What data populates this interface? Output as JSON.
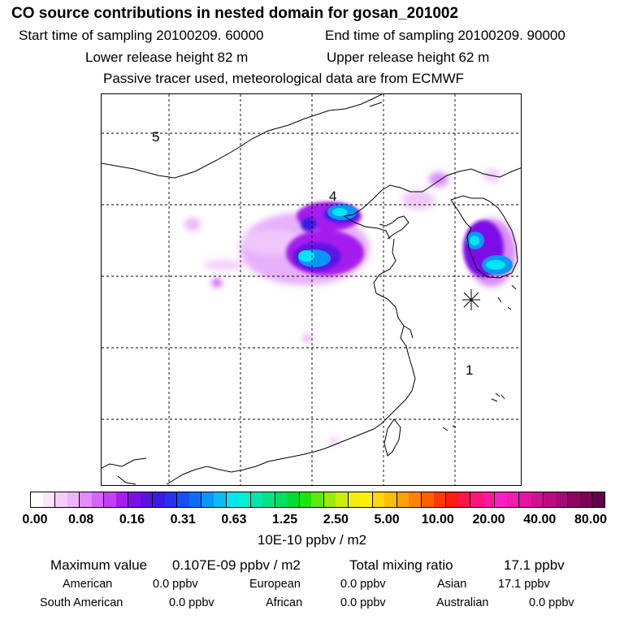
{
  "header": {
    "title": "CO  source contributions in nested domain for gosan_201002",
    "start": "Start time of sampling 20100209. 60000",
    "end": "End time of sampling 20100209. 90000",
    "lower": "Lower release height   82 m",
    "upper": "Upper release height   62 m",
    "note": "Passive tracer used, meteorological data are from ECMWF"
  },
  "map": {
    "grid_labels": [
      "5",
      "4",
      "1"
    ],
    "receptor_marker": "asterisk-icon"
  },
  "colorbar": {
    "ticks": [
      "0.00",
      "0.08",
      "0.16",
      "0.31",
      "0.63",
      "1.25",
      "2.50",
      "5.00",
      "10.00",
      "20.00",
      "40.00",
      "80.00"
    ],
    "colors": [
      "#ffffff",
      "#fbe6fe",
      "#f5cdfd",
      "#efb4fc",
      "#e48cfa",
      "#d765f8",
      "#c540f4",
      "#a61cee",
      "#7b10e6",
      "#5a12e3",
      "#3a1ae6",
      "#2632ef",
      "#1650f5",
      "#0a6ff8",
      "#0a96f9",
      "#0bbdf7",
      "#00e8f5",
      "#00f0d2",
      "#00e8ab",
      "#00e486",
      "#00e060",
      "#00dc32",
      "#1ee40a",
      "#5ee80a",
      "#9aea0c",
      "#cbed0c",
      "#f2f00a",
      "#fff000",
      "#ffd800",
      "#ffbd00",
      "#ffa000",
      "#ff8200",
      "#ff6000",
      "#ff3a00",
      "#ff1c10",
      "#ff1648",
      "#ff1674",
      "#ff169e",
      "#ff1ec4",
      "#f51ab4",
      "#e614a4",
      "#d21094",
      "#bc0c84",
      "#a40a74",
      "#8e0664",
      "#780454",
      "#62034a"
    ],
    "unit": "10E-10 ppbv / m2"
  },
  "summary": {
    "max_label": "Maximum value",
    "max_value": "0.107E-09 ppbv / m2",
    "total_label": "Total mixing ratio",
    "total_value": "17.1 ppbv",
    "regions": [
      {
        "name": "American",
        "value": "0.0 ppbv"
      },
      {
        "name": "European",
        "value": "0.0 ppbv"
      },
      {
        "name": "Asian",
        "value": "17.1 ppbv"
      },
      {
        "name": "South American",
        "value": "0.0 ppbv"
      },
      {
        "name": "African",
        "value": "0.0 ppbv"
      },
      {
        "name": "Australian",
        "value": "0.0 ppbv"
      }
    ]
  }
}
